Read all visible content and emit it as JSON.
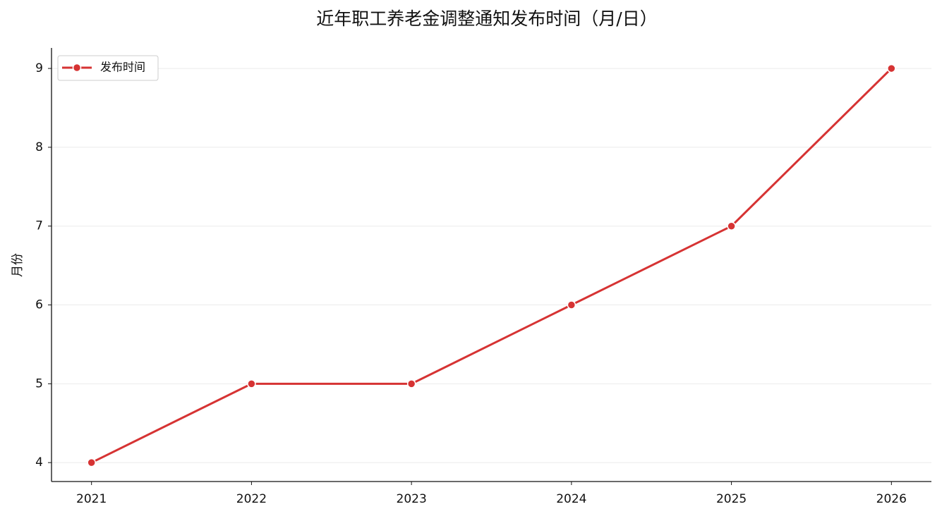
{
  "chart_data": {
    "type": "line",
    "title": "近年职工养老金调整通知发布时间（月/日）",
    "y_label": "月份",
    "x": [
      2021,
      2022,
      2023,
      2024,
      2025,
      2026
    ],
    "series": [
      {
        "name": "发布时间",
        "color": "#d63333",
        "values": [
          4,
          5,
          5,
          6,
          7,
          9
        ]
      }
    ],
    "xlim": [
      2020.75,
      2026.25
    ],
    "xticks": [
      2021,
      2022,
      2023,
      2024,
      2025,
      2026
    ],
    "ylim": [
      3.76,
      9.26
    ],
    "yticks": [
      4,
      5,
      6,
      7,
      8,
      9
    ],
    "grid": true,
    "legend": "upper-left"
  }
}
